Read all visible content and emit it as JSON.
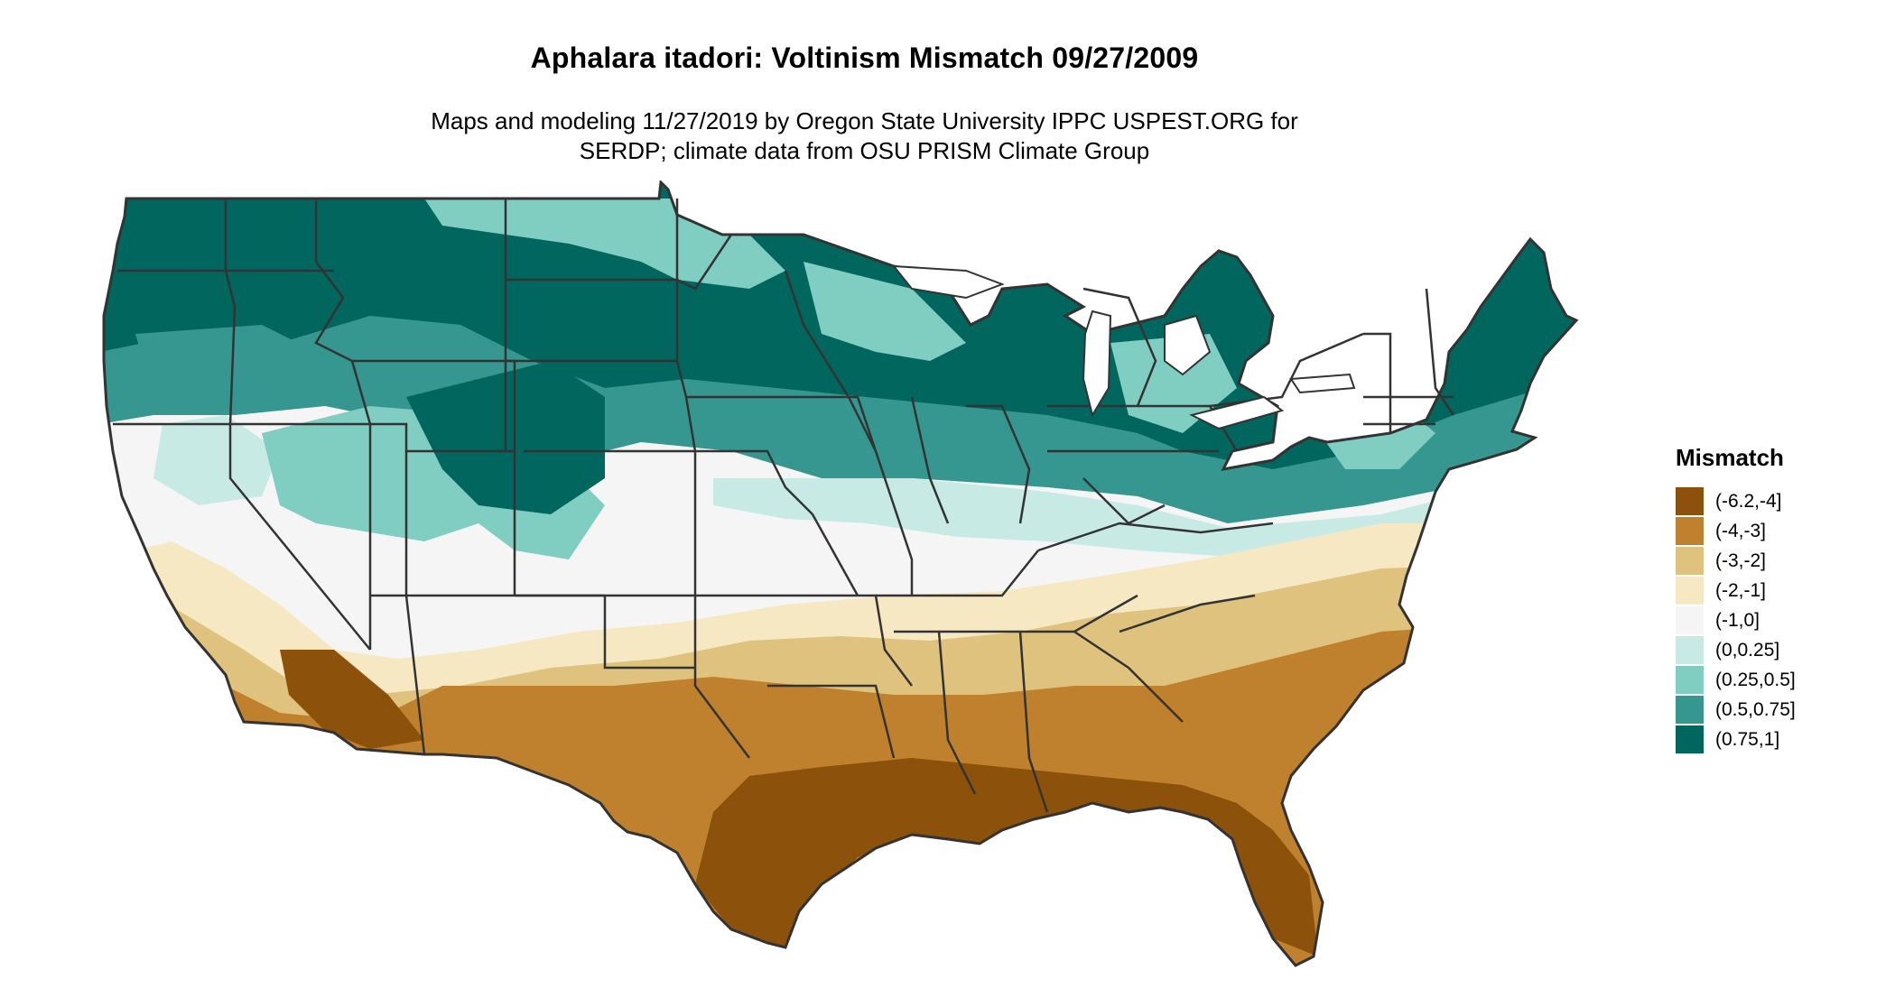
{
  "title": "Aphalara itadori: Voltinism Mismatch 09/27/2009",
  "subtitle_lines": [
    "Maps and modeling 11/27/2019 by Oregon State University IPPC USPEST.ORG for",
    "SERDP; climate data from OSU PRISM Climate Group"
  ],
  "legend": {
    "title": "Mismatch",
    "items": [
      {
        "label": "(-6.2,-4]",
        "color": "#8c510a"
      },
      {
        "label": "(-4,-3]",
        "color": "#bf812d"
      },
      {
        "label": "(-3,-2]",
        "color": "#dfc27d"
      },
      {
        "label": "(-2,-1]",
        "color": "#f6e8c3"
      },
      {
        "label": "(-1,0]",
        "color": "#f5f5f5"
      },
      {
        "label": "(0,0.25]",
        "color": "#c7eae5"
      },
      {
        "label": "(0.25,0.5]",
        "color": "#80cdc1"
      },
      {
        "label": "(0.5,0.75]",
        "color": "#35978f"
      },
      {
        "label": "(0.75,1]",
        "color": "#01665e"
      }
    ]
  },
  "map": {
    "region": "Contiguous United States",
    "boundary_color": "#333333"
  }
}
